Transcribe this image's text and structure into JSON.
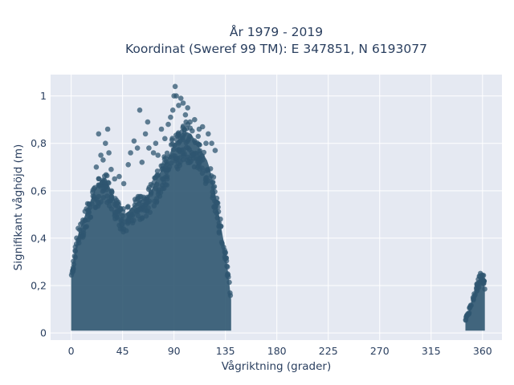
{
  "chart_data": {
    "type": "scatter",
    "title_lines": [
      "År 1979 - 2019",
      "Koordinat (Sweref 99 TM): E 347851, N 6193077"
    ],
    "xlabel": "Vågriktning (grader)",
    "ylabel": "Signifikant våghöjd (m)",
    "xlim": [
      -18,
      377
    ],
    "ylim": [
      -0.03,
      1.09
    ],
    "x_ticks": [
      0,
      45,
      90,
      135,
      180,
      225,
      270,
      315,
      360
    ],
    "x_tick_labels": [
      "0",
      "45",
      "90",
      "135",
      "180",
      "225",
      "270",
      "315",
      "360"
    ],
    "y_ticks": [
      0,
      0.2,
      0.4,
      0.6,
      0.8,
      1
    ],
    "y_tick_labels": [
      "0",
      "0,2",
      "0,4",
      "0,6",
      "0,8",
      "1"
    ],
    "grid": true,
    "legend": "none",
    "marker_color": "#2f5670",
    "plot_background": "#e5e9f2",
    "clusters": [
      {
        "direction_range": [
          0,
          140
        ],
        "envelope_x": [
          0,
          3,
          6,
          10,
          15,
          20,
          25,
          30,
          35,
          40,
          45,
          50,
          55,
          60,
          65,
          70,
          75,
          80,
          85,
          90,
          95,
          100,
          105,
          110,
          115,
          120,
          125,
          130,
          133,
          135,
          140
        ],
        "envelope_y": [
          0.25,
          0.34,
          0.42,
          0.47,
          0.53,
          0.6,
          0.64,
          0.66,
          0.6,
          0.54,
          0.5,
          0.51,
          0.54,
          0.56,
          0.57,
          0.6,
          0.65,
          0.7,
          0.74,
          0.8,
          0.82,
          0.85,
          0.84,
          0.8,
          0.76,
          0.72,
          0.62,
          0.48,
          0.4,
          0.35,
          0.14
        ]
      },
      {
        "direction_range": [
          345,
          362
        ],
        "envelope_x": [
          345,
          348,
          350,
          353,
          355,
          357,
          359,
          360,
          361,
          362
        ],
        "envelope_y": [
          0.06,
          0.09,
          0.13,
          0.17,
          0.2,
          0.23,
          0.25,
          0.25,
          0.24,
          0.18
        ]
      }
    ],
    "outliers": [
      {
        "x": 22,
        "y": 0.7
      },
      {
        "x": 24,
        "y": 0.84
      },
      {
        "x": 26,
        "y": 0.75
      },
      {
        "x": 28,
        "y": 0.73
      },
      {
        "x": 30,
        "y": 0.8
      },
      {
        "x": 32,
        "y": 0.86
      },
      {
        "x": 33,
        "y": 0.76
      },
      {
        "x": 35,
        "y": 0.69
      },
      {
        "x": 38,
        "y": 0.65
      },
      {
        "x": 42,
        "y": 0.66
      },
      {
        "x": 46,
        "y": 0.63
      },
      {
        "x": 50,
        "y": 0.71
      },
      {
        "x": 52,
        "y": 0.76
      },
      {
        "x": 55,
        "y": 0.81
      },
      {
        "x": 58,
        "y": 0.78
      },
      {
        "x": 60,
        "y": 0.94
      },
      {
        "x": 62,
        "y": 0.72
      },
      {
        "x": 65,
        "y": 0.84
      },
      {
        "x": 67,
        "y": 0.89
      },
      {
        "x": 68,
        "y": 0.78
      },
      {
        "x": 72,
        "y": 0.76
      },
      {
        "x": 74,
        "y": 0.8
      },
      {
        "x": 76,
        "y": 0.75
      },
      {
        "x": 79,
        "y": 0.86
      },
      {
        "x": 82,
        "y": 0.82
      },
      {
        "x": 85,
        "y": 0.88
      },
      {
        "x": 87,
        "y": 0.91
      },
      {
        "x": 89,
        "y": 0.94
      },
      {
        "x": 90,
        "y": 1.0
      },
      {
        "x": 91,
        "y": 1.04
      },
      {
        "x": 92,
        "y": 1.0
      },
      {
        "x": 94,
        "y": 0.96
      },
      {
        "x": 96,
        "y": 0.99
      },
      {
        "x": 98,
        "y": 0.97
      },
      {
        "x": 100,
        "y": 0.92
      },
      {
        "x": 102,
        "y": 0.95
      },
      {
        "x": 104,
        "y": 0.89
      },
      {
        "x": 108,
        "y": 0.9
      },
      {
        "x": 112,
        "y": 0.86
      },
      {
        "x": 115,
        "y": 0.87
      },
      {
        "x": 118,
        "y": 0.8
      },
      {
        "x": 120,
        "y": 0.84
      },
      {
        "x": 123,
        "y": 0.8
      },
      {
        "x": 126,
        "y": 0.77
      }
    ]
  }
}
